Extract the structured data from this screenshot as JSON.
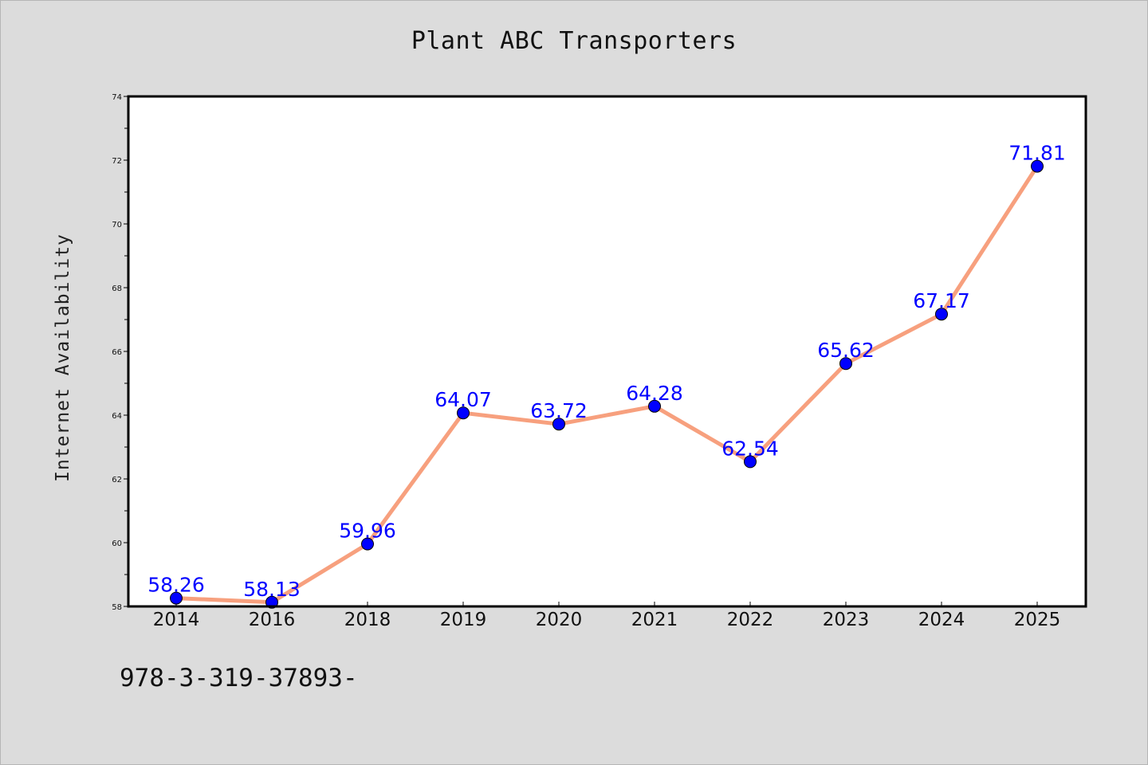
{
  "header": {
    "title": "Plant ABC Transporters"
  },
  "footer": {
    "note": "978-3-319-37893-"
  },
  "colors": {
    "background": "#dcdcdc",
    "plot_background": "#ffffff",
    "line": "#f7a07e",
    "marker": "#0000ff",
    "label": "#0000ff"
  },
  "chart_data": {
    "type": "line",
    "title": "Plant ABC Transporters",
    "xlabel": "",
    "ylabel": "Internet Availability",
    "categories": [
      "2014",
      "2016",
      "2018",
      "2019",
      "2020",
      "2021",
      "2022",
      "2023",
      "2024",
      "2025"
    ],
    "values": [
      58.26,
      58.13,
      59.96,
      64.07,
      63.72,
      64.28,
      62.54,
      65.62,
      67.17,
      71.81
    ],
    "data_labels": [
      "58.26",
      "58.13",
      "59.96",
      "64.07",
      "63.72",
      "64.28",
      "62.54",
      "65.62",
      "67.17",
      "71.81"
    ],
    "ylim": [
      58,
      74
    ],
    "yticks": [
      58,
      60,
      62,
      64,
      66,
      68,
      70,
      72,
      74
    ],
    "grid": false,
    "legend": "none"
  }
}
